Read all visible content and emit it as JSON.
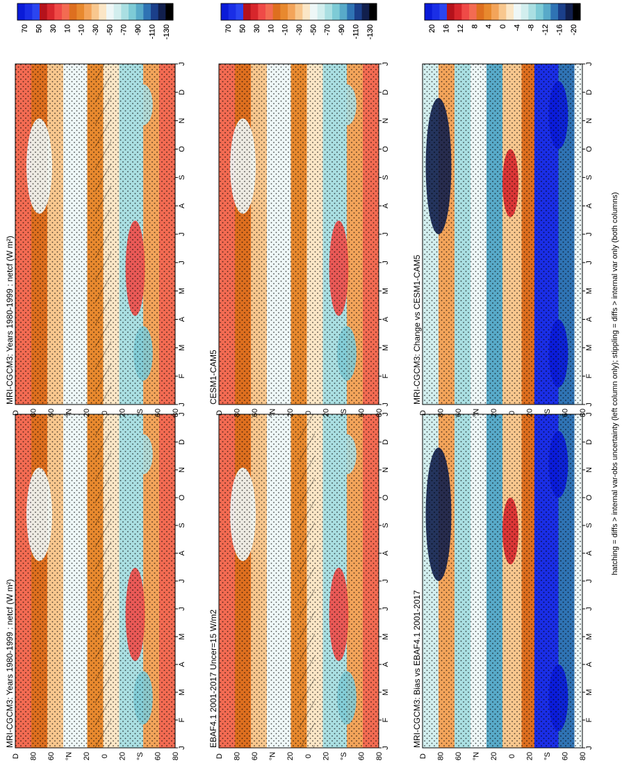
{
  "footnote": "hatching = diffs > internal var-obs uncertainty (left column only); stippling = diffs > internal var only (both columns)",
  "months": [
    "J",
    "F",
    "M",
    "A",
    "M",
    "J",
    "J",
    "A",
    "S",
    "O",
    "N",
    "D",
    "J"
  ],
  "lat_labels": [
    "D",
    "80",
    "60",
    "°N",
    "20",
    "0",
    "20",
    "°S",
    "60",
    "80"
  ],
  "palettes": {
    "abs": [
      "#0a1bd8",
      "#1a2ee6",
      "#2b45f0",
      "#b5121b",
      "#d7262c",
      "#ef4a47",
      "#f36b52",
      "#de6f1f",
      "#e8892e",
      "#f3a45a",
      "#f8c78e",
      "#fbe6c6",
      "#eef7f7",
      "#d2eeee",
      "#aadfe2",
      "#7ecbd6",
      "#58aac9",
      "#2f73b4",
      "#1b3f8a",
      "#111f4d",
      "#000000"
    ],
    "diff": [
      "#0a1bd8",
      "#1a2ee6",
      "#2b45f0",
      "#b5121b",
      "#d7262c",
      "#ef4a47",
      "#f36b52",
      "#de6f1f",
      "#e8892e",
      "#f3a45a",
      "#f8c78e",
      "#fbe6c6",
      "#eef7f7",
      "#d2eeee",
      "#aadfe2",
      "#7ecbd6",
      "#58aac9",
      "#2f73b4",
      "#1b3f8a",
      "#111f4d",
      "#000000"
    ]
  },
  "chart_data": [
    {
      "type": "heatmap",
      "title": "MRI-CGCM3: Years 1980-1999 : netcf (W m²)",
      "colorbar_labels": [
        "70",
        "50",
        "30",
        "10",
        "-10",
        "-30",
        "-50",
        "-70",
        "-90",
        "-110",
        "-130"
      ]
    },
    {
      "type": "heatmap",
      "title": "MRI-CGCM3: Years 1980-1999 : netcf (W m²)",
      "colorbar_labels": [
        "70",
        "50",
        "30",
        "10",
        "-10",
        "-30",
        "-50",
        "-70",
        "-90",
        "-110",
        "-130"
      ]
    },
    {
      "type": "heatmap",
      "title": "EBAF4.1 2001-2017 Uncer=15 W/m2",
      "colorbar_labels": [
        "70",
        "50",
        "30",
        "10",
        "-10",
        "-30",
        "-50",
        "-70",
        "-90",
        "-110",
        "-130"
      ]
    },
    {
      "type": "heatmap",
      "title": "CESM1-CAM5",
      "colorbar_labels": [
        "70",
        "50",
        "30",
        "10",
        "-10",
        "-30",
        "-50",
        "-70",
        "-90",
        "-110",
        "-130"
      ]
    },
    {
      "type": "heatmap",
      "title": "MRI-CGCM3: Bias vs EBAF4.1 2001-2017",
      "colorbar_labels": [
        "20",
        "16",
        "12",
        "8",
        "4",
        "0",
        "-4",
        "-8",
        "-12",
        "-16",
        "-20"
      ]
    },
    {
      "type": "heatmap",
      "title": "MRI-CGCM3: Change vs CESM1-CAM5",
      "colorbar_labels": [
        "20",
        "16",
        "12",
        "8",
        "4",
        "0",
        "-4",
        "-8",
        "-12",
        "-16",
        "-20"
      ]
    }
  ]
}
